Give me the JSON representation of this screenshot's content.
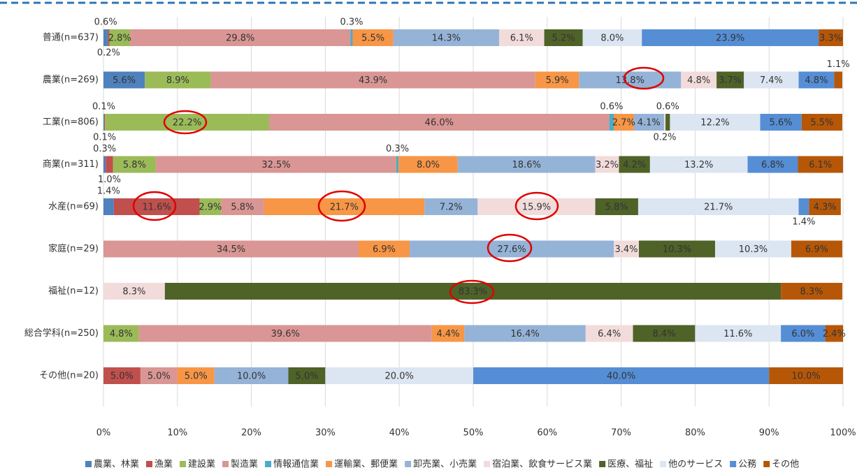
{
  "chart_data": {
    "type": "stacked-bar-horizontal",
    "categories": [
      "普通(n=637)",
      "農業(n=269)",
      "工業(n=806)",
      "商業(n=311)",
      "水産(n=69)",
      "家庭(n=29)",
      "福祉(n=12)",
      "総合学科(n=250)",
      "その他(n=20)"
    ],
    "xlim": [
      0,
      100
    ],
    "xticks": [
      {
        "value": 0,
        "label": "0%"
      },
      {
        "value": 10,
        "label": "10%"
      },
      {
        "value": 20,
        "label": "20%"
      },
      {
        "value": 30,
        "label": "30%"
      },
      {
        "value": 40,
        "label": "40%"
      },
      {
        "value": 50,
        "label": "50%"
      },
      {
        "value": 60,
        "label": "60%"
      },
      {
        "value": 70,
        "label": "70%"
      },
      {
        "value": 80,
        "label": "80%"
      },
      {
        "value": 90,
        "label": "90%"
      },
      {
        "value": 100,
        "label": "100%"
      }
    ],
    "grid": true,
    "legend": "bottom",
    "series": [
      {
        "name": "農業、林業",
        "color": "#4f81bd",
        "values": [
          0.6,
          5.6,
          0.1,
          0.3,
          1.4,
          null,
          null,
          null,
          null
        ],
        "value_labels": [
          "0.6%",
          "5.6%",
          "0.1%",
          "0.3%",
          "1.4%",
          null,
          null,
          null,
          null
        ]
      },
      {
        "name": "漁業",
        "color": "#c0504d",
        "values": [
          0.2,
          null,
          0.1,
          1.0,
          11.6,
          null,
          null,
          null,
          5.0
        ],
        "value_labels": [
          "0.2%",
          null,
          "0.1%",
          "1.0%",
          "11.6%",
          null,
          null,
          null,
          "5.0%"
        ]
      },
      {
        "name": "建設業",
        "color": "#9bbb59",
        "values": [
          2.8,
          8.9,
          22.2,
          5.8,
          2.9,
          null,
          null,
          4.8,
          null
        ],
        "value_labels": [
          "2.8%",
          "8.9%",
          "22.2%",
          "5.8%",
          "2.9%",
          null,
          null,
          "4.8%",
          null
        ]
      },
      {
        "name": "製造業",
        "color": "#d99694",
        "values": [
          29.8,
          43.9,
          46.0,
          32.5,
          5.8,
          34.5,
          null,
          39.6,
          5.0
        ],
        "value_labels": [
          "29.8%",
          "43.9%",
          "46.0%",
          "32.5%",
          "5.8%",
          "34.5%",
          null,
          "39.6%",
          "5.0%"
        ]
      },
      {
        "name": "情報通信業",
        "color": "#4bacc6",
        "values": [
          0.3,
          null,
          0.6,
          0.3,
          null,
          null,
          null,
          null,
          null
        ],
        "value_labels": [
          "0.3%",
          null,
          "0.6%",
          "0.3%",
          null,
          null,
          null,
          null,
          null
        ]
      },
      {
        "name": "運輸業、郵便業",
        "color": "#f79646",
        "values": [
          5.5,
          5.9,
          2.7,
          8.0,
          21.7,
          6.9,
          null,
          4.4,
          5.0
        ],
        "value_labels": [
          "5.5%",
          "5.9%",
          "2.7%",
          "8.0%",
          "21.7%",
          "6.9%",
          null,
          "4.4%",
          "5.0%"
        ]
      },
      {
        "name": "卸売業、小売業",
        "color": "#95b3d7",
        "values": [
          14.3,
          13.8,
          4.1,
          18.6,
          7.2,
          27.6,
          null,
          16.4,
          10.0
        ],
        "value_labels": [
          "14.3%",
          "13.8%",
          "4.1%",
          "18.6%",
          "7.2%",
          "27.6%",
          null,
          "16.4%",
          "10.0%"
        ]
      },
      {
        "name": "宿泊業、飲食サービス業",
        "color": "#f2dcdb",
        "values": [
          6.1,
          4.8,
          0.2,
          3.2,
          15.9,
          3.4,
          8.3,
          6.4,
          null
        ],
        "value_labels": [
          "6.1%",
          "4.8%",
          "0.2%",
          "3.2%",
          "15.9%",
          "3.4%",
          "8.3%",
          "6.4%",
          null
        ]
      },
      {
        "name": "医療、福祉",
        "color": "#4f6228",
        "values": [
          5.2,
          3.7,
          0.6,
          4.2,
          5.8,
          10.3,
          83.3,
          8.4,
          5.0
        ],
        "value_labels": [
          "5.2%",
          "3.7%",
          "0.6%",
          "4.2%",
          "5.8%",
          "10.3%",
          "83.3%",
          "8.4%",
          "5.0%"
        ]
      },
      {
        "name": "他のサービス",
        "color": "#dce6f2",
        "values": [
          8.0,
          7.4,
          12.2,
          13.2,
          21.7,
          10.3,
          null,
          11.6,
          20.0
        ],
        "value_labels": [
          "8.0%",
          "7.4%",
          "12.2%",
          "13.2%",
          "21.7%",
          "10.3%",
          null,
          "11.6%",
          "20.0%"
        ]
      },
      {
        "name": "公務",
        "color": "#558ed5",
        "values": [
          23.9,
          4.8,
          5.6,
          6.8,
          1.4,
          null,
          null,
          6.0,
          40.0
        ],
        "value_labels": [
          "23.9%",
          "4.8%",
          "5.6%",
          "6.8%",
          "1.4%",
          null,
          null,
          "6.0%",
          "40.0%"
        ]
      },
      {
        "name": "その他",
        "color": "#b65708",
        "values": [
          3.3,
          1.1,
          5.5,
          6.1,
          4.3,
          6.9,
          8.3,
          2.4,
          10.0
        ],
        "value_labels": [
          "3.3%",
          "1.1%",
          "5.5%",
          "6.1%",
          "4.3%",
          "6.9%",
          "8.3%",
          "2.4%",
          "10.0%"
        ]
      }
    ]
  }
}
